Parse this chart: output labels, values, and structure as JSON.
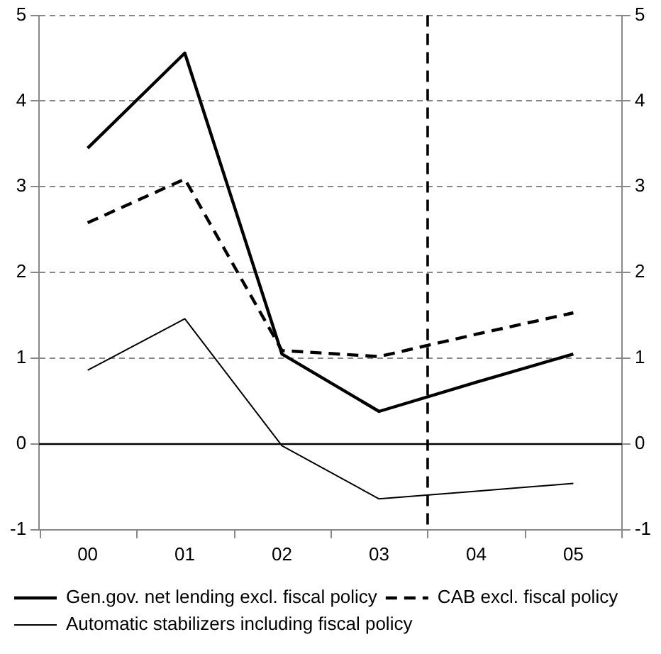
{
  "chart_data": {
    "type": "line",
    "x": [
      2000,
      2001,
      2002,
      2003,
      2004,
      2005
    ],
    "xlim": [
      1999.5,
      2005.5
    ],
    "xticks": [
      {
        "value": 2000,
        "label": "00"
      },
      {
        "value": 2001,
        "label": "01"
      },
      {
        "value": 2002,
        "label": "02"
      },
      {
        "value": 2003,
        "label": "03"
      },
      {
        "value": 2004,
        "label": "04"
      },
      {
        "value": 2005,
        "label": "05"
      }
    ],
    "series": [
      {
        "name": "Gen.gov. net lending excl. fiscal policy",
        "color": "#000000",
        "line_style": "solid",
        "values": [
          3.45,
          4.56,
          1.05,
          0.38,
          0.72,
          1.05
        ]
      },
      {
        "name": "CAB excl. fiscal policy",
        "color": "#000000",
        "line_style": "dashed",
        "values": [
          2.58,
          3.09,
          1.09,
          1.02,
          1.28,
          1.53
        ]
      },
      {
        "name": "Automatic stabilizers including fiscal policy",
        "color": "#000000",
        "line_style": "solid",
        "values": [
          0.86,
          1.46,
          -0.02,
          -0.64,
          -0.55,
          -0.46
        ]
      }
    ],
    "ylim": [
      -1,
      5
    ],
    "yticks": [
      -1,
      0,
      1,
      2,
      3,
      4,
      5
    ],
    "y2lim": [
      -1,
      5
    ],
    "y2ticks": [
      -1,
      0,
      1,
      2,
      3,
      4,
      5
    ],
    "ref_lines": [
      {
        "axis": "x",
        "value": 2003.5,
        "color": "#000000",
        "line_style": "dashed"
      },
      {
        "axis": "y",
        "value": 0,
        "color": "#000000",
        "line_style": "solid"
      }
    ],
    "grid": "y",
    "legend": "bottom left",
    "marker": "none"
  }
}
